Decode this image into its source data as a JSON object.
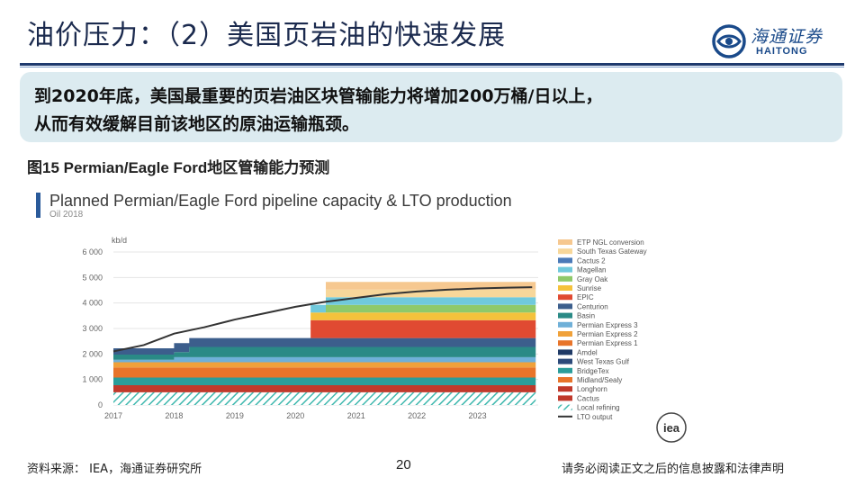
{
  "slide": {
    "title": "油价压力：（2）美国页岩油的快速发展",
    "summary_line1": "到2020年底，美国最重要的页岩油区块管输能力将增加200万桶/日以上，",
    "summary_line2": "从而有效缓解目前该地区的原油运输瓶颈。",
    "figure_caption": "图15 Permian/Eagle Ford地区管输能力预测",
    "source": "资料来源： IEA，海通证券研究所",
    "page_number": "20",
    "disclaimer": "请务必阅读正文之后的信息披露和法律声明"
  },
  "logo": {
    "cn": "海通证券",
    "en": "HAITONG",
    "color": "#1a4a8a"
  },
  "chart_data": {
    "type": "area",
    "title": "Planned Permian/Eagle Ford pipeline capacity & LTO production",
    "subtitle": "Oil 2018",
    "ylabel": "kb/d",
    "ylim": [
      0,
      6000
    ],
    "yticks": [
      0,
      1000,
      2000,
      3000,
      4000,
      5000,
      6000
    ],
    "ytick_labels": [
      "0",
      "1 000",
      "2 000",
      "3 000",
      "4 000",
      "5 000",
      "6 000"
    ],
    "xlim": [
      2017,
      2024
    ],
    "xticks": [
      2017,
      2018,
      2019,
      2020,
      2021,
      2022,
      2023
    ],
    "xtick_labels": [
      "2017",
      "2018",
      "2019",
      "2020",
      "2021",
      "2022",
      "2023"
    ],
    "x_break_years": [
      2017,
      2017.4,
      2017.9,
      2018,
      2018.25,
      2019,
      2019.5,
      2019.75,
      2019.95,
      2020.25,
      2020.5,
      2023.9
    ],
    "series": [
      {
        "name": "Local refining",
        "color": "#3fb8ae",
        "pattern": "hatch",
        "values": [
          500,
          500,
          500,
          500,
          500,
          500,
          500,
          500,
          500,
          500,
          500,
          500
        ]
      },
      {
        "name": "Cactus",
        "color": "#c0392b",
        "values": [
          0,
          0,
          0,
          0,
          0,
          0,
          0,
          0,
          0,
          0,
          0,
          0
        ]
      },
      {
        "name": "Longhorn",
        "color": "#c0392b",
        "values": [
          275,
          275,
          275,
          275,
          275,
          275,
          275,
          275,
          275,
          275,
          275,
          275
        ]
      },
      {
        "name": "Midland/Sealy",
        "color": "#e8742a",
        "values": [
          0,
          0,
          0,
          0,
          0,
          0,
          0,
          0,
          0,
          0,
          0,
          0
        ]
      },
      {
        "name": "BridgeTex",
        "color": "#2a9d9a",
        "values": [
          300,
          300,
          300,
          300,
          300,
          300,
          300,
          300,
          300,
          300,
          300,
          300
        ]
      },
      {
        "name": "West Texas Gulf",
        "color": "#2c4a7a",
        "values": [
          0,
          0,
          0,
          0,
          0,
          0,
          0,
          0,
          0,
          0,
          0,
          0
        ]
      },
      {
        "name": "Amdel",
        "color": "#1f3a66",
        "values": [
          0,
          0,
          0,
          0,
          0,
          0,
          0,
          0,
          0,
          0,
          0,
          0
        ]
      },
      {
        "name": "Permian Express 1",
        "color": "#e8742a",
        "values": [
          400,
          400,
          400,
          400,
          400,
          400,
          400,
          400,
          400,
          400,
          400,
          400
        ]
      },
      {
        "name": "Permian Express 2",
        "color": "#f0a13a",
        "values": [
          200,
          200,
          200,
          200,
          200,
          200,
          200,
          200,
          200,
          200,
          200,
          200
        ]
      },
      {
        "name": "Permian Express 3",
        "color": "#6fb0d8",
        "values": [
          100,
          100,
          100,
          200,
          200,
          200,
          200,
          200,
          200,
          200,
          200,
          200
        ]
      },
      {
        "name": "Basin",
        "color": "#2a8a86",
        "values": [
          200,
          200,
          200,
          200,
          400,
          400,
          400,
          400,
          400,
          400,
          400,
          400
        ]
      },
      {
        "name": "Centurion",
        "color": "#3c5e8c",
        "values": [
          250,
          250,
          250,
          350,
          350,
          350,
          350,
          350,
          350,
          350,
          350,
          350
        ]
      },
      {
        "name": "EPIC",
        "color": "#e04a32",
        "values": [
          0,
          0,
          0,
          0,
          0,
          0,
          0,
          0,
          0,
          700,
          700,
          700
        ]
      },
      {
        "name": "Sunrise",
        "color": "#f5c23c",
        "values": [
          0,
          0,
          0,
          0,
          0,
          0,
          0,
          0,
          0,
          300,
          300,
          300
        ]
      },
      {
        "name": "Gray Oak",
        "color": "#8fc96a",
        "values": [
          0,
          0,
          0,
          0,
          0,
          0,
          0,
          0,
          0,
          0,
          300,
          300
        ]
      },
      {
        "name": "Magellan",
        "color": "#70c9dc",
        "values": [
          0,
          0,
          0,
          0,
          0,
          0,
          0,
          0,
          0,
          300,
          300,
          300
        ]
      },
      {
        "name": "Cactus 2",
        "color": "#4a7ab8",
        "values": [
          0,
          0,
          0,
          0,
          0,
          0,
          0,
          0,
          0,
          0,
          0,
          0
        ]
      },
      {
        "name": "South Texas Gateway",
        "color": "#f7d79a",
        "values": [
          0,
          0,
          0,
          0,
          0,
          0,
          0,
          0,
          0,
          0,
          300,
          300
        ]
      },
      {
        "name": "ETP NGL conversion",
        "color": "#f6c890",
        "values": [
          0,
          0,
          0,
          0,
          0,
          0,
          0,
          0,
          0,
          0,
          300,
          300
        ]
      }
    ],
    "lto_output": {
      "name": "LTO output",
      "color": "#333333",
      "x": [
        2017,
        2017.5,
        2018,
        2018.5,
        2019,
        2019.5,
        2020,
        2020.5,
        2021,
        2021.5,
        2022,
        2022.5,
        2023,
        2023.5,
        2023.9
      ],
      "values": [
        2100,
        2350,
        2800,
        3050,
        3350,
        3600,
        3850,
        4050,
        4200,
        4350,
        4450,
        4520,
        4570,
        4600,
        4620
      ]
    },
    "legend_position": "right",
    "source_logo": "iea"
  }
}
